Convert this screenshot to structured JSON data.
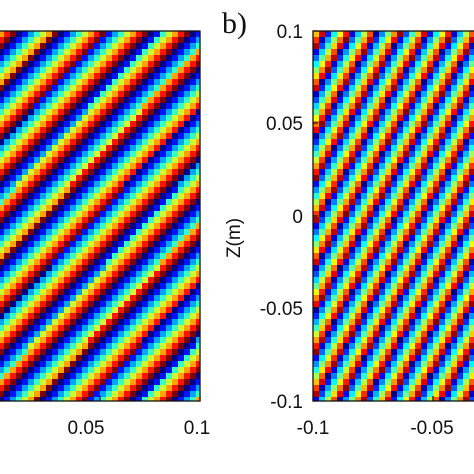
{
  "chart_data": [
    {
      "type": "heatmap",
      "panel": "a",
      "colormap": "jet",
      "x_tick_labels": [
        "0.05",
        "0.1"
      ],
      "xlim": [
        0.0,
        0.1
      ],
      "ylim": [
        -0.1,
        0.1
      ],
      "stripes": {
        "count": 8.5,
        "slope_per_meter": 1.1,
        "quantized": true,
        "levels": 8
      }
    },
    {
      "type": "heatmap",
      "panel": "b",
      "label": "b)",
      "colormap": "jet",
      "ylabel": "Z(m)",
      "y_tick_labels": [
        "0.1",
        "0.05",
        "0",
        "-0.05",
        "-0.1"
      ],
      "x_tick_labels": [
        "-0.1",
        "-0.05"
      ],
      "xlim": [
        -0.1,
        0.0
      ],
      "ylim": [
        -0.1,
        0.1
      ],
      "stripes": {
        "count": 8.5,
        "slope_per_meter": 1.5,
        "quantized": false,
        "levels": 60
      }
    }
  ]
}
